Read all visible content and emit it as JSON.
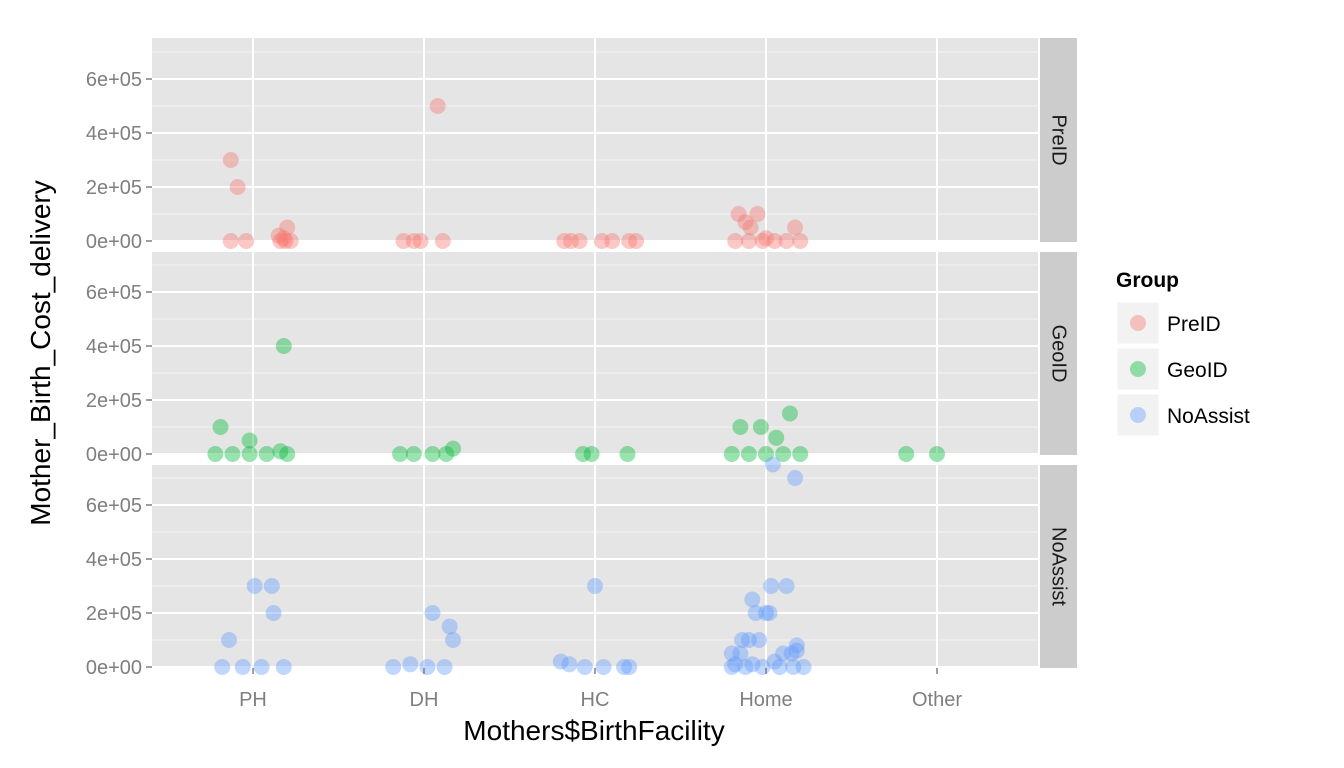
{
  "chart_data": {
    "type": "scatter",
    "xlabel": "Mothers$BirthFacility",
    "ylabel": "Mother_Birth_Cost_delivery",
    "categories": [
      "PH",
      "DH",
      "HC",
      "Home",
      "Other"
    ],
    "y_ticks": [
      0,
      200000,
      400000,
      600000
    ],
    "y_tick_labels": [
      "0e+00",
      "2e+05",
      "4e+05",
      "6e+05"
    ],
    "ylim": [
      0,
      750000
    ],
    "facets": [
      "PreID",
      "GeoID",
      "NoAssist"
    ],
    "grid": true,
    "legend_position": "right",
    "legend": {
      "title": "Group",
      "entries": [
        {
          "label": "PreID",
          "color": "#F8766D"
        },
        {
          "label": "GeoID",
          "color": "#00BA38"
        },
        {
          "label": "NoAssist",
          "color": "#619CFF"
        }
      ]
    },
    "series": [
      {
        "name": "PreID",
        "color": "#F8766D",
        "points": [
          [
            "PH",
            -0.13,
            300000
          ],
          [
            "PH",
            -0.09,
            200000
          ],
          [
            "PH",
            -0.13,
            0
          ],
          [
            "PH",
            -0.04,
            0
          ],
          [
            "PH",
            0.15,
            20000
          ],
          [
            "PH",
            0.2,
            50000
          ],
          [
            "PH",
            0.18,
            10000
          ],
          [
            "PH",
            0.16,
            0
          ],
          [
            "PH",
            0.22,
            0
          ],
          [
            "PH",
            0.19,
            0
          ],
          [
            "DH",
            0.08,
            500000
          ],
          [
            "DH",
            -0.12,
            0
          ],
          [
            "DH",
            -0.06,
            0
          ],
          [
            "DH",
            -0.02,
            0
          ],
          [
            "DH",
            0.11,
            0
          ],
          [
            "HC",
            -0.18,
            0
          ],
          [
            "HC",
            -0.14,
            0
          ],
          [
            "HC",
            -0.09,
            0
          ],
          [
            "HC",
            0.04,
            0
          ],
          [
            "HC",
            0.1,
            0
          ],
          [
            "HC",
            0.2,
            0
          ],
          [
            "HC",
            0.24,
            0
          ],
          [
            "Home",
            -0.16,
            100000
          ],
          [
            "Home",
            -0.12,
            70000
          ],
          [
            "Home",
            -0.09,
            50000
          ],
          [
            "Home",
            -0.05,
            100000
          ],
          [
            "Home",
            0.17,
            50000
          ],
          [
            "Home",
            -0.18,
            0
          ],
          [
            "Home",
            -0.1,
            0
          ],
          [
            "Home",
            -0.02,
            0
          ],
          [
            "Home",
            0.05,
            0
          ],
          [
            "Home",
            0.12,
            0
          ],
          [
            "Home",
            0.2,
            0
          ],
          [
            "Home",
            0.0,
            10000
          ]
        ]
      },
      {
        "name": "GeoID",
        "color": "#00BA38",
        "points": [
          [
            "PH",
            -0.19,
            100000
          ],
          [
            "PH",
            -0.02,
            50000
          ],
          [
            "PH",
            0.18,
            400000
          ],
          [
            "PH",
            0.16,
            10000
          ],
          [
            "PH",
            -0.22,
            0
          ],
          [
            "PH",
            -0.12,
            0
          ],
          [
            "PH",
            -0.02,
            0
          ],
          [
            "PH",
            0.08,
            0
          ],
          [
            "PH",
            0.2,
            0
          ],
          [
            "DH",
            0.17,
            20000
          ],
          [
            "DH",
            -0.14,
            0
          ],
          [
            "DH",
            -0.06,
            0
          ],
          [
            "DH",
            0.05,
            0
          ],
          [
            "DH",
            0.13,
            0
          ],
          [
            "HC",
            -0.07,
            0
          ],
          [
            "HC",
            -0.02,
            0
          ],
          [
            "HC",
            0.19,
            0
          ],
          [
            "Home",
            -0.15,
            100000
          ],
          [
            "Home",
            -0.03,
            100000
          ],
          [
            "Home",
            0.06,
            60000
          ],
          [
            "Home",
            0.14,
            150000
          ],
          [
            "Home",
            -0.2,
            0
          ],
          [
            "Home",
            -0.1,
            0
          ],
          [
            "Home",
            0.0,
            0
          ],
          [
            "Home",
            0.1,
            0
          ],
          [
            "Home",
            0.2,
            0
          ],
          [
            "Other",
            -0.18,
            0
          ],
          [
            "Other",
            0.0,
            0
          ]
        ]
      },
      {
        "name": "NoAssist",
        "color": "#619CFF",
        "points": [
          [
            "PH",
            -0.14,
            100000
          ],
          [
            "PH",
            0.01,
            300000
          ],
          [
            "PH",
            0.11,
            300000
          ],
          [
            "PH",
            0.12,
            200000
          ],
          [
            "PH",
            -0.18,
            0
          ],
          [
            "PH",
            -0.06,
            0
          ],
          [
            "PH",
            0.05,
            0
          ],
          [
            "PH",
            0.18,
            0
          ],
          [
            "DH",
            0.05,
            200000
          ],
          [
            "DH",
            0.15,
            150000
          ],
          [
            "DH",
            0.17,
            100000
          ],
          [
            "DH",
            -0.18,
            0
          ],
          [
            "DH",
            -0.08,
            10000
          ],
          [
            "DH",
            0.02,
            0
          ],
          [
            "DH",
            0.12,
            0
          ],
          [
            "HC",
            0.0,
            300000
          ],
          [
            "HC",
            -0.2,
            20000
          ],
          [
            "HC",
            -0.15,
            10000
          ],
          [
            "HC",
            -0.06,
            0
          ],
          [
            "HC",
            0.05,
            0
          ],
          [
            "HC",
            0.17,
            0
          ],
          [
            "HC",
            0.2,
            0
          ],
          [
            "Home",
            0.04,
            750000
          ],
          [
            "Home",
            0.17,
            700000
          ],
          [
            "Home",
            0.03,
            300000
          ],
          [
            "Home",
            0.12,
            300000
          ],
          [
            "Home",
            -0.08,
            250000
          ],
          [
            "Home",
            -0.06,
            200000
          ],
          [
            "Home",
            0.0,
            200000
          ],
          [
            "Home",
            0.02,
            200000
          ],
          [
            "Home",
            -0.14,
            100000
          ],
          [
            "Home",
            -0.1,
            100000
          ],
          [
            "Home",
            -0.04,
            100000
          ],
          [
            "Home",
            -0.2,
            50000
          ],
          [
            "Home",
            -0.15,
            50000
          ],
          [
            "Home",
            0.1,
            50000
          ],
          [
            "Home",
            0.15,
            50000
          ],
          [
            "Home",
            0.18,
            80000
          ],
          [
            "Home",
            0.18,
            60000
          ],
          [
            "Home",
            -0.18,
            10000
          ],
          [
            "Home",
            -0.08,
            10000
          ],
          [
            "Home",
            0.05,
            20000
          ],
          [
            "Home",
            -0.2,
            0
          ],
          [
            "Home",
            -0.12,
            0
          ],
          [
            "Home",
            -0.02,
            0
          ],
          [
            "Home",
            0.08,
            0
          ],
          [
            "Home",
            0.16,
            0
          ],
          [
            "Home",
            0.22,
            0
          ]
        ]
      }
    ]
  }
}
